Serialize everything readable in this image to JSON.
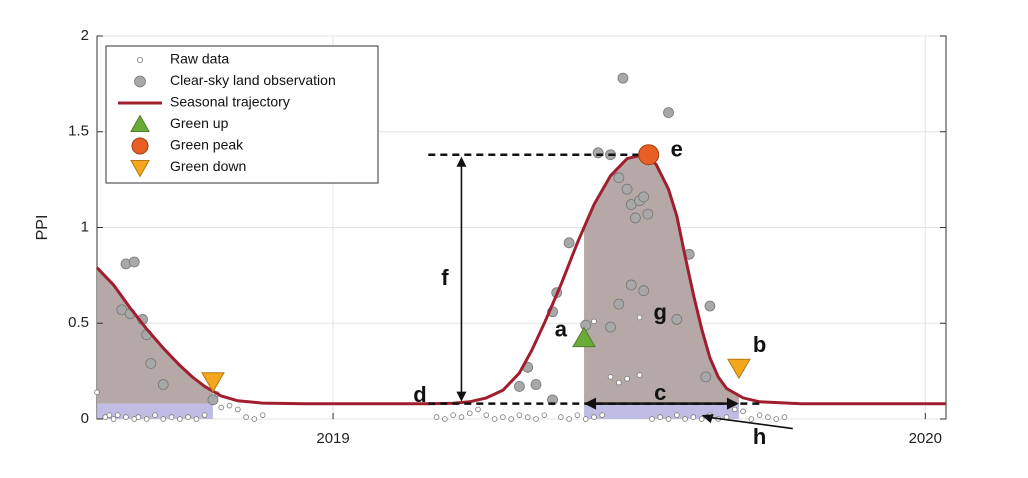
{
  "chart_data": {
    "type": "line",
    "title": "",
    "xlabel": "",
    "ylabel": "PPI",
    "xlim": [
      0,
      1.025
    ],
    "ylim": [
      0,
      2
    ],
    "x_unit_note": "",
    "yticks": [
      "0",
      "0.5",
      "1",
      "1.5",
      "2"
    ],
    "xticks": [
      {
        "value": 0.285,
        "label": "2019"
      },
      {
        "value": 1.0,
        "label": "2020"
      }
    ],
    "grid": true,
    "legend_position": "top-left",
    "legend": [
      {
        "label": "Raw data",
        "marker": "open-circle"
      },
      {
        "label": "Clear-sky land observation",
        "marker": "grey-circle"
      },
      {
        "label": "Seasonal trajectory",
        "marker": "line",
        "color": "#a01f2e"
      },
      {
        "label": "Green up",
        "marker": "triangle-up",
        "color": "#6aab3a"
      },
      {
        "label": "Green peak",
        "marker": "circle",
        "color": "#e85e25"
      },
      {
        "label": "Green down",
        "marker": "triangle-down",
        "color": "#f2a71d"
      }
    ],
    "series": [
      {
        "name": "Seasonal trajectory",
        "color": "#a01f2e",
        "points": [
          [
            0,
            0.79
          ],
          [
            0.02,
            0.7
          ],
          [
            0.04,
            0.58
          ],
          [
            0.06,
            0.47
          ],
          [
            0.08,
            0.37
          ],
          [
            0.1,
            0.28
          ],
          [
            0.115,
            0.22
          ],
          [
            0.13,
            0.17
          ],
          [
            0.15,
            0.12
          ],
          [
            0.17,
            0.095
          ],
          [
            0.2,
            0.083
          ],
          [
            0.25,
            0.08
          ],
          [
            0.3,
            0.08
          ],
          [
            0.35,
            0.08
          ],
          [
            0.4,
            0.08
          ],
          [
            0.43,
            0.082
          ],
          [
            0.45,
            0.09
          ],
          [
            0.47,
            0.11
          ],
          [
            0.49,
            0.15
          ],
          [
            0.51,
            0.24
          ],
          [
            0.525,
            0.36
          ],
          [
            0.54,
            0.5
          ],
          [
            0.56,
            0.7
          ],
          [
            0.58,
            0.92
          ],
          [
            0.6,
            1.12
          ],
          [
            0.62,
            1.27
          ],
          [
            0.64,
            1.36
          ],
          [
            0.66,
            1.38
          ],
          [
            0.675,
            1.33
          ],
          [
            0.69,
            1.2
          ],
          [
            0.7,
            1.06
          ],
          [
            0.71,
            0.85
          ],
          [
            0.72,
            0.65
          ],
          [
            0.73,
            0.47
          ],
          [
            0.74,
            0.32
          ],
          [
            0.75,
            0.22
          ],
          [
            0.76,
            0.16
          ],
          [
            0.78,
            0.11
          ],
          [
            0.8,
            0.09
          ],
          [
            0.85,
            0.08
          ],
          [
            0.9,
            0.08
          ],
          [
            0.95,
            0.08
          ],
          [
            1.025,
            0.08
          ]
        ]
      }
    ],
    "clear_sky_observations": [
      [
        0.035,
        0.81
      ],
      [
        0.045,
        0.82
      ],
      [
        0.03,
        0.57
      ],
      [
        0.04,
        0.55
      ],
      [
        0.055,
        0.52
      ],
      [
        0.06,
        0.44
      ],
      [
        0.065,
        0.29
      ],
      [
        0.08,
        0.18
      ],
      [
        0.14,
        0.1
      ],
      [
        0.57,
        0.92
      ],
      [
        0.52,
        0.27
      ],
      [
        0.51,
        0.17
      ],
      [
        0.53,
        0.18
      ],
      [
        0.55,
        0.56
      ],
      [
        0.555,
        0.66
      ],
      [
        0.59,
        0.49
      ],
      [
        0.605,
        1.39
      ],
      [
        0.62,
        1.38
      ],
      [
        0.63,
        1.26
      ],
      [
        0.64,
        1.2
      ],
      [
        0.645,
        1.12
      ],
      [
        0.65,
        1.05
      ],
      [
        0.655,
        1.14
      ],
      [
        0.66,
        1.16
      ],
      [
        0.665,
        1.07
      ],
      [
        0.645,
        0.7
      ],
      [
        0.66,
        0.67
      ],
      [
        0.635,
        1.78
      ],
      [
        0.69,
        1.6
      ],
      [
        0.7,
        0.52
      ],
      [
        0.715,
        0.86
      ],
      [
        0.74,
        0.59
      ],
      [
        0.735,
        0.22
      ],
      [
        0.62,
        0.48
      ],
      [
        0.63,
        0.6
      ],
      [
        0.55,
        0.1
      ]
    ],
    "raw_data": [
      [
        0.0,
        0.14
      ],
      [
        0.01,
        0.01
      ],
      [
        0.015,
        0.02
      ],
      [
        0.02,
        0.0
      ],
      [
        0.025,
        0.02
      ],
      [
        0.035,
        0.01
      ],
      [
        0.045,
        0.0
      ],
      [
        0.05,
        0.01
      ],
      [
        0.06,
        0.0
      ],
      [
        0.07,
        0.02
      ],
      [
        0.08,
        0.0
      ],
      [
        0.09,
        0.01
      ],
      [
        0.1,
        0.0
      ],
      [
        0.11,
        0.01
      ],
      [
        0.12,
        0.0
      ],
      [
        0.13,
        0.02
      ],
      [
        0.145,
        0.13
      ],
      [
        0.15,
        0.06
      ],
      [
        0.16,
        0.07
      ],
      [
        0.17,
        0.05
      ],
      [
        0.18,
        0.01
      ],
      [
        0.19,
        0.0
      ],
      [
        0.2,
        0.02
      ],
      [
        0.41,
        0.01
      ],
      [
        0.42,
        0.0
      ],
      [
        0.43,
        0.02
      ],
      [
        0.44,
        0.01
      ],
      [
        0.45,
        0.03
      ],
      [
        0.46,
        0.05
      ],
      [
        0.47,
        0.02
      ],
      [
        0.48,
        0.0
      ],
      [
        0.49,
        0.01
      ],
      [
        0.5,
        0.0
      ],
      [
        0.51,
        0.02
      ],
      [
        0.52,
        0.01
      ],
      [
        0.53,
        0.0
      ],
      [
        0.54,
        0.02
      ],
      [
        0.56,
        0.01
      ],
      [
        0.57,
        0.0
      ],
      [
        0.58,
        0.02
      ],
      [
        0.59,
        0.0
      ],
      [
        0.6,
        0.01
      ],
      [
        0.61,
        0.02
      ],
      [
        0.62,
        0.22
      ],
      [
        0.63,
        0.19
      ],
      [
        0.64,
        0.21
      ],
      [
        0.655,
        0.23
      ],
      [
        0.67,
        0.0
      ],
      [
        0.68,
        0.01
      ],
      [
        0.69,
        0.0
      ],
      [
        0.7,
        0.02
      ],
      [
        0.71,
        0.0
      ],
      [
        0.72,
        0.01
      ],
      [
        0.73,
        0.0
      ],
      [
        0.74,
        0.02
      ],
      [
        0.75,
        0.0
      ],
      [
        0.76,
        0.01
      ],
      [
        0.77,
        0.05
      ],
      [
        0.78,
        0.04
      ],
      [
        0.79,
        0.0
      ],
      [
        0.8,
        0.02
      ],
      [
        0.81,
        0.01
      ],
      [
        0.82,
        0.0
      ],
      [
        0.83,
        0.01
      ],
      [
        0.655,
        0.53
      ],
      [
        0.6,
        0.51
      ]
    ],
    "markers": [
      {
        "type": "green-up",
        "x": 0.588,
        "y": 0.42,
        "color": "#6aab3a"
      },
      {
        "type": "green-peak",
        "x": 0.666,
        "y": 1.38,
        "color": "#e85e25"
      },
      {
        "type": "green-down",
        "x": 0.775,
        "y": 0.27,
        "color": "#f2a71d"
      },
      {
        "type": "green-down",
        "x": 0.14,
        "y": 0.2,
        "color": "#f2a71d"
      }
    ],
    "annotations": [
      {
        "label": "a",
        "x": 0.56,
        "y": 0.46
      },
      {
        "label": "b",
        "x": 0.8,
        "y": 0.38
      },
      {
        "label": "c",
        "x": 0.68,
        "y": 0.13
      },
      {
        "label": "d",
        "x": 0.39,
        "y": 0.12
      },
      {
        "label": "e",
        "x": 0.7,
        "y": 1.4
      },
      {
        "label": "f",
        "x": 0.42,
        "y": 0.73
      },
      {
        "label": "g",
        "x": 0.68,
        "y": 0.55
      },
      {
        "label": "h",
        "x": 0.8,
        "y": -0.1
      }
    ],
    "shaded_regions": [
      {
        "name": "season-1",
        "x_start": 0.0,
        "x_end": 0.14,
        "baseline": 0.08
      },
      {
        "name": "season-2",
        "x_start": 0.588,
        "x_end": 0.775,
        "baseline": 0.08
      }
    ],
    "reference_lines": {
      "peak_y": 1.38,
      "base_y": 0.08,
      "peak_line_x": [
        0.4,
        0.666
      ],
      "base_line_x": [
        0.4,
        0.8
      ],
      "f_arrow_x": 0.44,
      "c_arrow_x": [
        0.588,
        0.775
      ],
      "h_arrow_from": [
        0.84,
        -0.05
      ],
      "h_arrow_to": [
        0.73,
        0.02
      ]
    }
  }
}
